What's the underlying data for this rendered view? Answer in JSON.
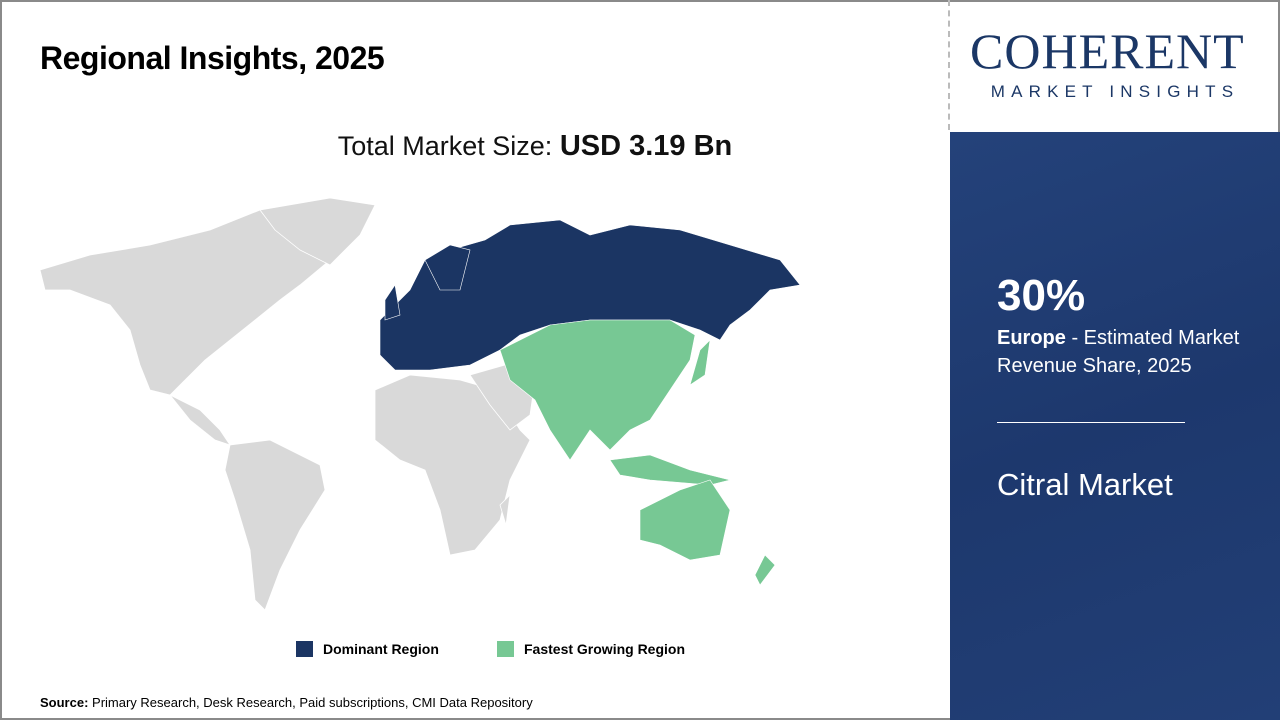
{
  "title": "Regional Insights, 2025",
  "total": {
    "label": "Total Market Size: ",
    "value": "USD 3.19 Bn"
  },
  "logo": {
    "name": "COHERENT",
    "tagline": "MARKET INSIGHTS"
  },
  "panel": {
    "percent": "30%",
    "region": "Europe",
    "description": " - Estimated Market Revenue Share, 2025",
    "market": "Citral Market"
  },
  "legend": [
    {
      "label": "Dominant Region",
      "color": "#1b3563"
    },
    {
      "label": "Fastest Growing Region",
      "color": "#77c894"
    }
  ],
  "map_colors": {
    "other": "#d9d9d9",
    "dominant": "#1b3563",
    "fastest": "#77c894"
  },
  "source": {
    "label": "Source:",
    "text": " Primary Research, Desk Research, Paid subscriptions, CMI Data Repository"
  }
}
